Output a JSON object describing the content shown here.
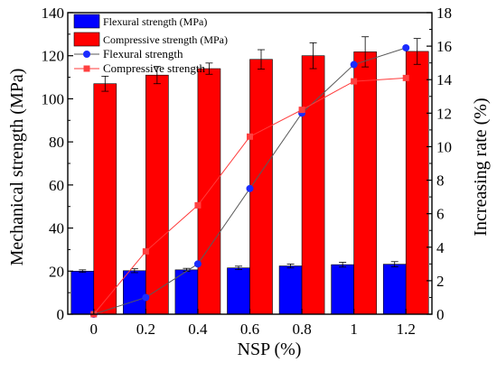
{
  "chart_data": {
    "type": "bar",
    "title": "",
    "xlabel": "NSP (%)",
    "ylabel": "Mechanical strength (MPa)",
    "y2label": "Increasing rate (%)",
    "categories": [
      "0",
      "0.2",
      "0.4",
      "0.6",
      "0.8",
      "1",
      "1.2"
    ],
    "ylim": [
      0,
      140
    ],
    "y2lim": [
      0,
      18
    ],
    "yticks": [
      "0",
      "20",
      "40",
      "60",
      "80",
      "100",
      "120",
      "140"
    ],
    "y2ticks": [
      "0",
      "2",
      "4",
      "6",
      "8",
      "10",
      "12",
      "14",
      "16",
      "18"
    ],
    "grid": false,
    "legend_position": "top-left",
    "bar_series": [
      {
        "name": "Flexural strength (MPa)",
        "color": "#0000ff",
        "values": [
          20.0,
          20.2,
          20.6,
          21.5,
          22.4,
          23.0,
          23.2
        ],
        "errors": [
          0.6,
          0.9,
          0.7,
          0.8,
          0.9,
          1.1,
          1.2
        ]
      },
      {
        "name": "Compressive strength (MPa)",
        "color": "#ff0000",
        "values": [
          107.0,
          111.0,
          114.0,
          118.3,
          120.0,
          121.8,
          122.0
        ],
        "errors": [
          3.5,
          4.0,
          2.6,
          4.5,
          6.0,
          7.0,
          6.0
        ]
      }
    ],
    "line_series": [
      {
        "name": "Flexural strength",
        "color": "#0000ff",
        "axis": "y2",
        "marker": "circle",
        "values": [
          0,
          1.0,
          3.0,
          7.5,
          12.0,
          14.9,
          15.9
        ]
      },
      {
        "name": "Compressive strength",
        "color": "#ff0000",
        "axis": "y2",
        "marker": "square",
        "values": [
          0,
          3.75,
          6.5,
          10.6,
          12.2,
          13.9,
          14.1
        ]
      }
    ]
  }
}
